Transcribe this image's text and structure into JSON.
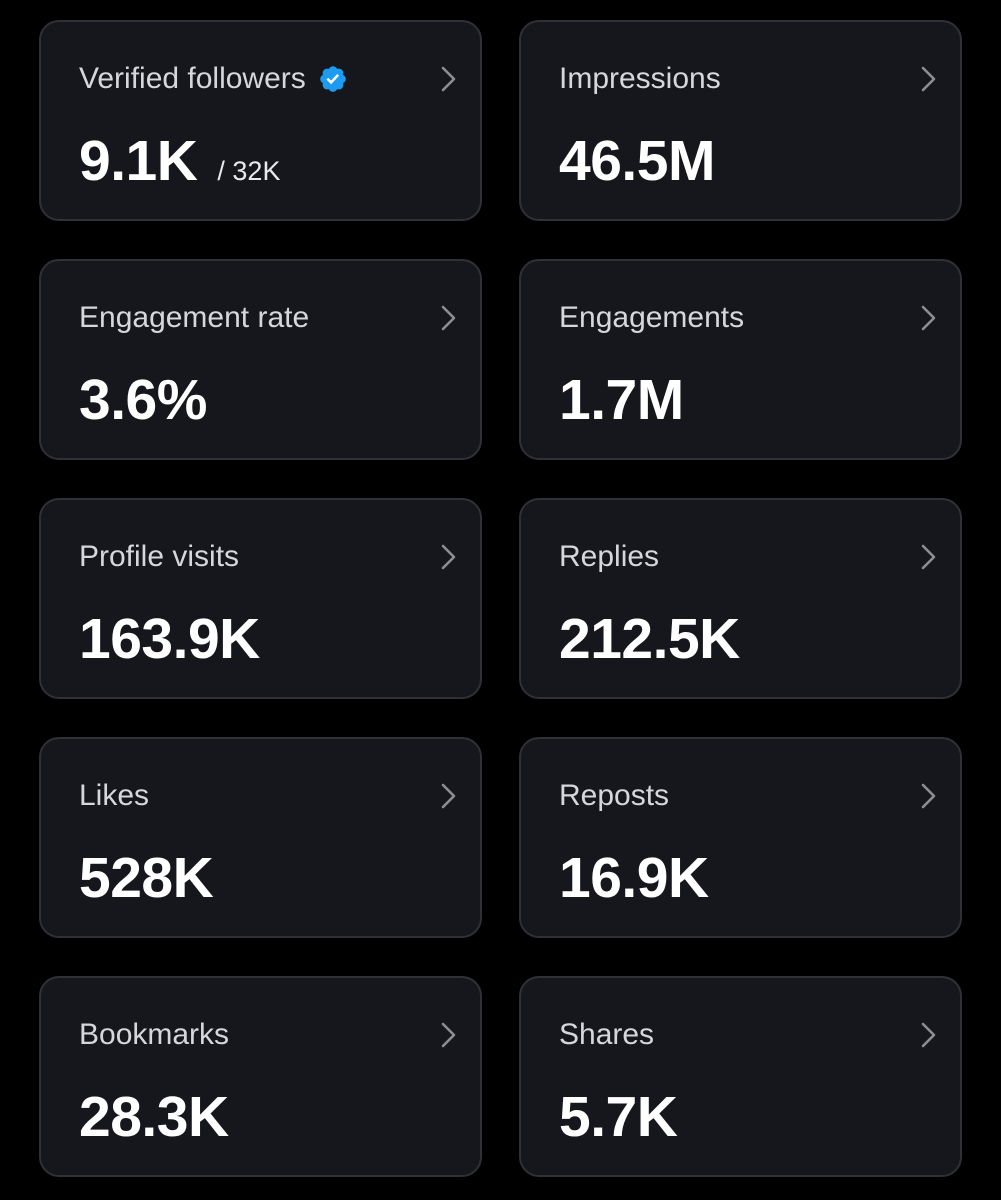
{
  "colors": {
    "background": "#000000",
    "card_background": "#16171c",
    "card_border": "#2f3136",
    "label_text": "#d5d7da",
    "value_text": "#ffffff",
    "verified_badge": "#1d9bf0",
    "chevron": "#8b8f94"
  },
  "metrics": [
    {
      "label": "Verified followers",
      "value": "9.1K",
      "suffix": "/ 32K",
      "badge_icon": "verified-badge-icon"
    },
    {
      "label": "Impressions",
      "value": "46.5M"
    },
    {
      "label": "Engagement rate",
      "value": "3.6%"
    },
    {
      "label": "Engagements",
      "value": "1.7M"
    },
    {
      "label": "Profile visits",
      "value": "163.9K"
    },
    {
      "label": "Replies",
      "value": "212.5K"
    },
    {
      "label": "Likes",
      "value": "528K"
    },
    {
      "label": "Reposts",
      "value": "16.9K"
    },
    {
      "label": "Bookmarks",
      "value": "28.3K"
    },
    {
      "label": "Shares",
      "value": "5.7K"
    }
  ],
  "chevron_icon": "chevron-right-icon"
}
